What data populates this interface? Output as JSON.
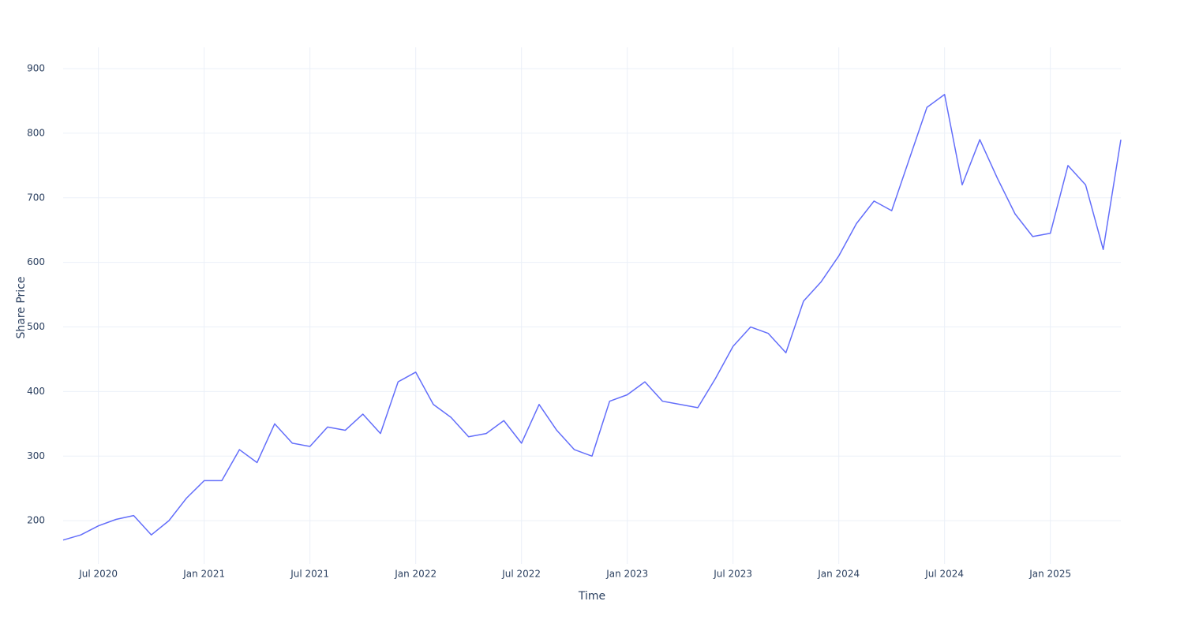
{
  "chart_data": {
    "type": "line",
    "x_label": "Time",
    "y_label": "Share Price",
    "x": [
      "2020-05",
      "2020-06",
      "2020-07",
      "2020-08",
      "2020-09",
      "2020-10",
      "2020-11",
      "2020-12",
      "2021-01",
      "2021-02",
      "2021-03",
      "2021-04",
      "2021-05",
      "2021-06",
      "2021-07",
      "2021-08",
      "2021-09",
      "2021-10",
      "2021-11",
      "2021-12",
      "2022-01",
      "2022-02",
      "2022-03",
      "2022-04",
      "2022-05",
      "2022-06",
      "2022-07",
      "2022-08",
      "2022-09",
      "2022-10",
      "2022-11",
      "2022-12",
      "2023-01",
      "2023-02",
      "2023-03",
      "2023-04",
      "2023-05",
      "2023-06",
      "2023-07",
      "2023-08",
      "2023-09",
      "2023-10",
      "2023-11",
      "2023-12",
      "2024-01",
      "2024-02",
      "2024-03",
      "2024-04",
      "2024-05",
      "2024-06",
      "2024-07",
      "2024-08",
      "2024-09",
      "2024-10",
      "2024-11",
      "2024-12",
      "2025-01",
      "2025-02",
      "2025-03",
      "2025-04",
      "2025-05"
    ],
    "series": [
      {
        "color": "#636efa",
        "values": [
          170,
          178,
          192,
          202,
          208,
          178,
          200,
          235,
          262,
          262,
          310,
          290,
          350,
          320,
          315,
          345,
          340,
          365,
          335,
          415,
          430,
          380,
          360,
          330,
          335,
          355,
          320,
          380,
          340,
          310,
          300,
          385,
          395,
          415,
          385,
          380,
          375,
          420,
          470,
          500,
          490,
          460,
          540,
          570,
          610,
          660,
          695,
          680,
          760,
          840,
          860,
          720,
          790,
          730,
          675,
          640,
          645,
          750,
          720,
          620,
          790
        ]
      }
    ],
    "xlim": [
      "2020-05",
      "2025-05"
    ],
    "xticks": [
      {
        "value": "2020-07",
        "label": "Jul 2020"
      },
      {
        "value": "2021-01",
        "label": "Jan 2021"
      },
      {
        "value": "2021-07",
        "label": "Jul 2021"
      },
      {
        "value": "2022-01",
        "label": "Jan 2022"
      },
      {
        "value": "2022-07",
        "label": "Jul 2022"
      },
      {
        "value": "2023-01",
        "label": "Jan 2023"
      },
      {
        "value": "2023-07",
        "label": "Jul 2023"
      },
      {
        "value": "2024-01",
        "label": "Jan 2024"
      },
      {
        "value": "2024-07",
        "label": "Jul 2024"
      },
      {
        "value": "2025-01",
        "label": "Jan 2025"
      }
    ],
    "ylim": [
      133,
      933
    ],
    "yticks": [
      200,
      300,
      400,
      500,
      600,
      700,
      800,
      900
    ],
    "grid": true
  }
}
